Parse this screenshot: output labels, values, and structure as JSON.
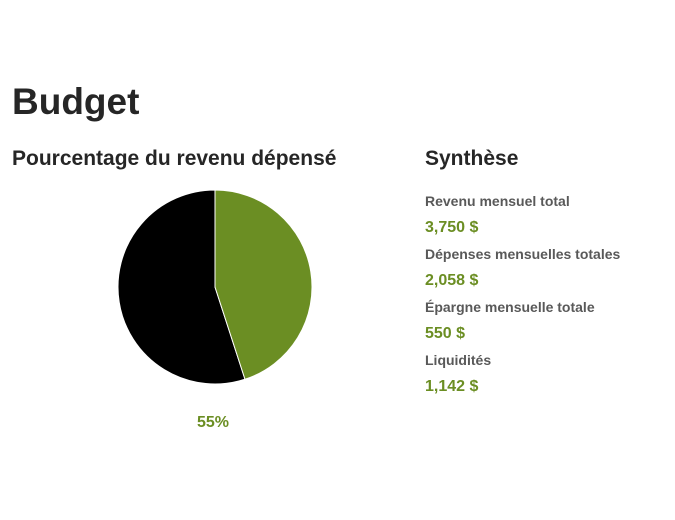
{
  "page": {
    "title": "Budget"
  },
  "colors": {
    "spent": "#000000",
    "remaining": "#6b8e23",
    "accent": "#6b8e23"
  },
  "chart_data": {
    "type": "pie",
    "title": "Pourcentage du revenu dépensé",
    "slices": [
      {
        "value": 55,
        "color": "#000000"
      },
      {
        "value": 45,
        "color": "#6b8e23"
      }
    ],
    "label": "55%"
  },
  "summary": {
    "title": "Synthèse",
    "items": [
      {
        "label": "Revenu mensuel total",
        "value": "3,750 $"
      },
      {
        "label": "Dépenses mensuelles totales",
        "value": "2,058 $"
      },
      {
        "label": "Épargne mensuelle totale",
        "value": "550 $"
      },
      {
        "label": "Liquidités",
        "value": "1,142 $"
      }
    ]
  }
}
